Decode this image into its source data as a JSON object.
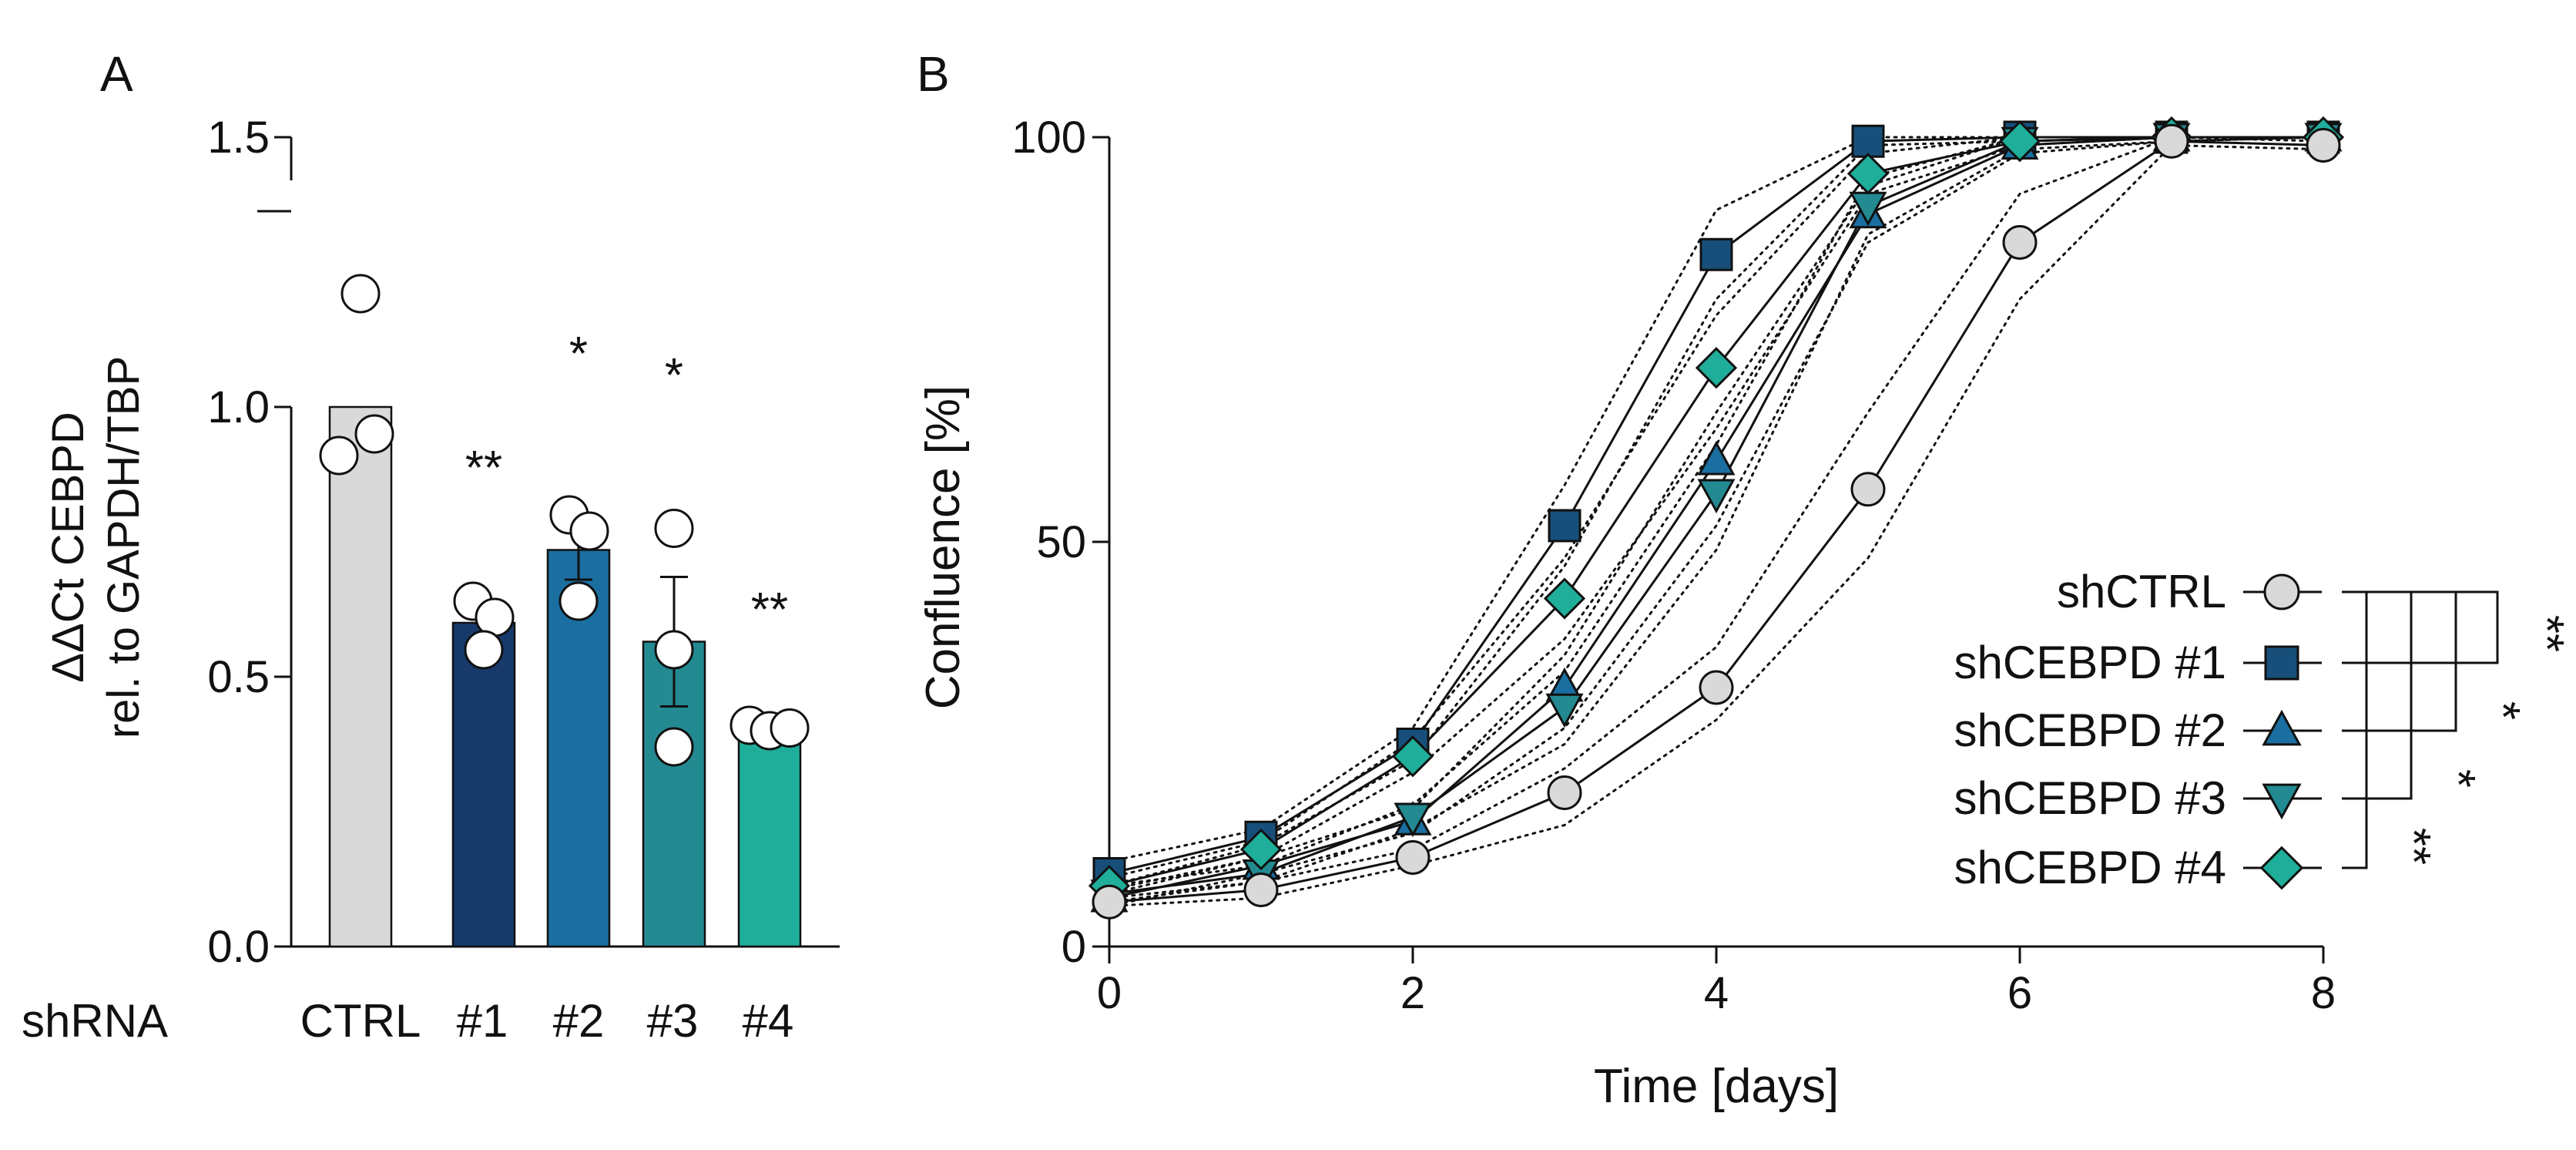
{
  "panel_a": {
    "label": "A",
    "ylabel_line1": "ΔΔCt CEBPD",
    "ylabel_line2": "rel. to GAPDH/TBP",
    "row_label": "shRNA",
    "chart_data": {
      "type": "bar",
      "categories": [
        "CTRL",
        "#1",
        "#2",
        "#3",
        "#4"
      ],
      "values": [
        1.0,
        0.6,
        0.735,
        0.565,
        0.41
      ],
      "sem": [
        0.0,
        0.0,
        0.055,
        0.12,
        0.0
      ],
      "points": [
        [
          1.21,
          0.91,
          0.95
        ],
        [
          0.64,
          0.61,
          0.55
        ],
        [
          0.8,
          0.77,
          0.64
        ],
        [
          0.775,
          0.55,
          0.37
        ],
        [
          0.41,
          0.4,
          0.405
        ]
      ],
      "significance": [
        "",
        "**",
        "*",
        "*",
        "**"
      ],
      "colors": [
        "#d9d9d9",
        "#173a6b",
        "#1a6fa0",
        "#238a92",
        "#1fae9a"
      ],
      "ylim": [
        0,
        1.5
      ],
      "yticks": [
        "0.0",
        "0.5",
        "1.0",
        "1.5"
      ],
      "xlabel": "shRNA",
      "ylabel": "ΔΔCt CEBPD rel. to GAPDH/TBP"
    }
  },
  "panel_b": {
    "label": "B",
    "chart_data": {
      "type": "line",
      "xlabel": "Time [days]",
      "ylabel": "Confluence [%]",
      "xlim": [
        0,
        8
      ],
      "ylim": [
        0,
        100
      ],
      "xticks": [
        "0",
        "2",
        "4",
        "6",
        "8"
      ],
      "yticks": [
        "0",
        "50",
        "100"
      ],
      "x": [
        0,
        1,
        2,
        3,
        4,
        5,
        6,
        7,
        8
      ],
      "series": [
        {
          "name": "shCTRL",
          "marker": "circle",
          "color": "#d9d9d9",
          "values": [
            5.5,
            7,
            11,
            19,
            32,
            56.5,
            87,
            99.5,
            99
          ],
          "lower": [
            5,
            6,
            10,
            15,
            28,
            48,
            80,
            99,
            98.5
          ],
          "upper": [
            6,
            8,
            12,
            22,
            37,
            66,
            93,
            100,
            99.5
          ]
        },
        {
          "name": "shCEBPD #1",
          "marker": "square",
          "color": "#174f7a",
          "values": [
            9,
            13.5,
            25,
            52,
            85.5,
            99.5,
            100,
            100,
            100
          ],
          "lower": [
            7.5,
            12.5,
            23,
            47,
            80,
            99,
            99.5,
            100,
            100
          ],
          "upper": [
            10.5,
            14.5,
            27,
            57,
            91,
            100,
            100,
            100,
            100
          ]
        },
        {
          "name": "shCEBPD #2",
          "marker": "triangle-up",
          "color": "#1a6fa0",
          "values": [
            6,
            10,
            15.5,
            32,
            60,
            90.5,
            99,
            100,
            100
          ],
          "lower": [
            5,
            9,
            14,
            27,
            52,
            87,
            98,
            99.5,
            100
          ],
          "upper": [
            7,
            11,
            17,
            36,
            66,
            94,
            100,
            100,
            100
          ]
        },
        {
          "name": "shCEBPD #3",
          "marker": "triangle-down",
          "color": "#238a92",
          "values": [
            6.5,
            9,
            16,
            29.5,
            56,
            91.5,
            99.5,
            100,
            100
          ],
          "lower": [
            5.5,
            8,
            14.5,
            25,
            49,
            88,
            98.5,
            99.5,
            100
          ],
          "upper": [
            7.5,
            10,
            17.5,
            34,
            62,
            95,
            100,
            100,
            100
          ]
        },
        {
          "name": "shCEBPD #4",
          "marker": "diamond",
          "color": "#1fae9a",
          "values": [
            7.5,
            12,
            23.5,
            43,
            71.5,
            95.5,
            99.5,
            100,
            100
          ],
          "lower": [
            6.5,
            11,
            21.5,
            38,
            64,
            93,
            99,
            100,
            100
          ],
          "upper": [
            8.5,
            13,
            25.5,
            48,
            78,
            98,
            100,
            100,
            100
          ]
        }
      ],
      "significance": [
        "**",
        "*",
        "*",
        "**"
      ]
    }
  }
}
